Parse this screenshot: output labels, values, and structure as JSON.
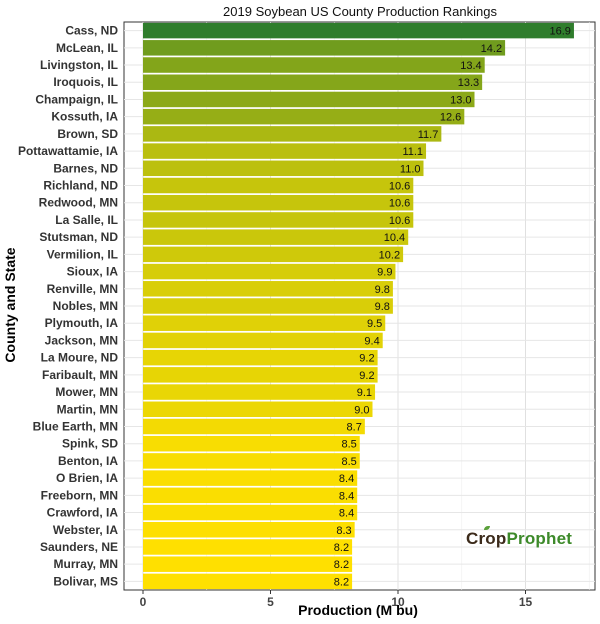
{
  "chart_data": {
    "type": "bar",
    "orientation": "horizontal",
    "title": "2019 Soybean US County Production Rankings",
    "xlabel": "Production (M bu)",
    "ylabel": "County and State",
    "xlim": [
      0,
      17.8
    ],
    "xticks": [
      0,
      5,
      10,
      15
    ],
    "grid": true,
    "color_low": "#ffe000",
    "color_high": "#2f7d2c",
    "categories": [
      "Cass, ND",
      "McLean, IL",
      "Livingston, IL",
      "Iroquois, IL",
      "Champaign, IL",
      "Kossuth, IA",
      "Brown, SD",
      "Pottawattamie, IA",
      "Barnes, ND",
      "Richland, ND",
      "Redwood, MN",
      "La Salle, IL",
      "Stutsman, ND",
      "Vermilion, IL",
      "Sioux, IA",
      "Renville, MN",
      "Nobles, MN",
      "Plymouth, IA",
      "Jackson, MN",
      "La Moure, ND",
      "Faribault, MN",
      "Mower, MN",
      "Martin, MN",
      "Blue Earth, MN",
      "Spink, SD",
      "Benton, IA",
      "O Brien, IA",
      "Freeborn, MN",
      "Crawford, IA",
      "Webster, IA",
      "Saunders, NE",
      "Murray, MN",
      "Bolivar, MS"
    ],
    "values": [
      16.9,
      14.2,
      13.4,
      13.3,
      13.0,
      12.6,
      11.7,
      11.1,
      11.0,
      10.6,
      10.6,
      10.6,
      10.4,
      10.2,
      9.9,
      9.8,
      9.8,
      9.5,
      9.4,
      9.2,
      9.2,
      9.1,
      9.0,
      8.7,
      8.5,
      8.5,
      8.4,
      8.4,
      8.4,
      8.3,
      8.2,
      8.2,
      8.2
    ]
  },
  "brand": {
    "part1": "Crop",
    "part2": "Prophet"
  }
}
